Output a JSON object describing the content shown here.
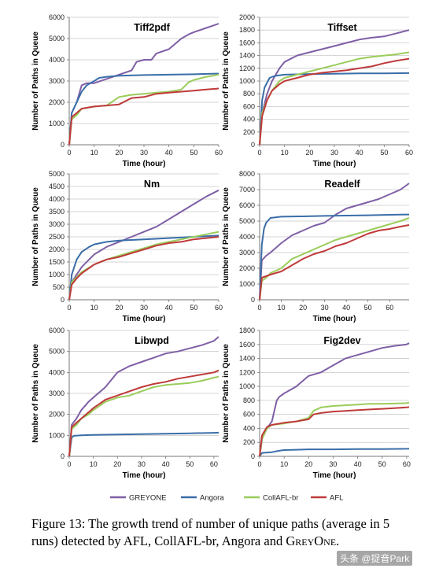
{
  "legend": [
    {
      "name": "GREYONE",
      "color": "#7f5fa6"
    },
    {
      "name": "Angora",
      "color": "#3a6ea8"
    },
    {
      "name": "CollAFL-br",
      "color": "#9acc5a"
    },
    {
      "name": "AFL",
      "color": "#bf3a3a"
    }
  ],
  "caption": {
    "label": "Figure 13:",
    "text": "The growth trend of number of unique paths (average in 5 runs) detected by AFL, CollAFL-br, Angora and",
    "tail": "GreyOne."
  },
  "watermark": "头条 @捉音Park",
  "chart_data": [
    {
      "type": "line",
      "title": "Tiff2pdf",
      "xlabel": "Time (hour)",
      "ylabel": "Number of Paths in Queue",
      "xlim": [
        0,
        60
      ],
      "xticks": [
        0,
        10,
        20,
        30,
        40,
        50,
        60
      ],
      "ylim": [
        0,
        6000
      ],
      "yticks": [
        0,
        1000,
        2000,
        3000,
        4000,
        5000,
        6000
      ],
      "series": [
        {
          "name": "GREYONE",
          "x": [
            0,
            1,
            3,
            5,
            7,
            10,
            15,
            20,
            25,
            27,
            30,
            33,
            35,
            40,
            45,
            48,
            50,
            55,
            60
          ],
          "y": [
            0,
            1500,
            2000,
            2800,
            2900,
            2900,
            3100,
            3300,
            3500,
            3900,
            4000,
            4000,
            4300,
            4500,
            5000,
            5200,
            5300,
            5500,
            5700
          ]
        },
        {
          "name": "Angora",
          "x": [
            0,
            1,
            3,
            5,
            7,
            10,
            12,
            15,
            20,
            30,
            40,
            50,
            60
          ],
          "y": [
            0,
            1500,
            2000,
            2500,
            2800,
            3000,
            3150,
            3200,
            3250,
            3280,
            3300,
            3320,
            3350
          ]
        },
        {
          "name": "CollAFL-br",
          "x": [
            0,
            1,
            3,
            5,
            10,
            15,
            20,
            25,
            30,
            35,
            40,
            45,
            48,
            50,
            55,
            60
          ],
          "y": [
            0,
            1200,
            1400,
            1700,
            1800,
            1850,
            2250,
            2350,
            2400,
            2450,
            2500,
            2600,
            2950,
            3050,
            3200,
            3300
          ]
        },
        {
          "name": "AFL",
          "x": [
            0,
            1,
            3,
            5,
            10,
            15,
            20,
            25,
            30,
            35,
            40,
            45,
            50,
            55,
            60
          ],
          "y": [
            0,
            1300,
            1500,
            1700,
            1800,
            1850,
            1900,
            2200,
            2250,
            2400,
            2450,
            2500,
            2550,
            2600,
            2650
          ]
        }
      ]
    },
    {
      "type": "line",
      "title": "Tiffset",
      "xlabel": "Time (hour)",
      "ylabel": "Number of Paths in Queue",
      "xlim": [
        0,
        60
      ],
      "xticks": [
        0,
        10,
        20,
        30,
        40,
        50,
        60
      ],
      "ylim": [
        0,
        2000
      ],
      "yticks": [
        0,
        200,
        400,
        600,
        800,
        1000,
        1200,
        1400,
        1600,
        1800,
        2000
      ],
      "series": [
        {
          "name": "GREYONE",
          "x": [
            0,
            1,
            3,
            5,
            8,
            10,
            15,
            20,
            25,
            30,
            35,
            40,
            45,
            50,
            55,
            60
          ],
          "y": [
            0,
            500,
            800,
            1000,
            1200,
            1300,
            1400,
            1450,
            1500,
            1550,
            1600,
            1650,
            1680,
            1700,
            1750,
            1800
          ]
        },
        {
          "name": "Angora",
          "x": [
            0,
            1,
            2,
            4,
            6,
            10,
            20,
            30,
            40,
            50,
            60
          ],
          "y": [
            0,
            700,
            900,
            1050,
            1080,
            1100,
            1110,
            1115,
            1120,
            1120,
            1125
          ]
        },
        {
          "name": "CollAFL-br",
          "x": [
            0,
            1,
            3,
            5,
            8,
            10,
            15,
            20,
            25,
            30,
            35,
            40,
            45,
            50,
            55,
            60
          ],
          "y": [
            0,
            500,
            700,
            850,
            1000,
            1050,
            1100,
            1150,
            1200,
            1250,
            1300,
            1350,
            1380,
            1400,
            1420,
            1450
          ]
        },
        {
          "name": "AFL",
          "x": [
            0,
            1,
            3,
            5,
            8,
            10,
            15,
            20,
            25,
            30,
            35,
            40,
            45,
            50,
            55,
            60
          ],
          "y": [
            0,
            450,
            700,
            850,
            950,
            1000,
            1050,
            1100,
            1130,
            1150,
            1170,
            1200,
            1230,
            1280,
            1320,
            1350
          ]
        }
      ]
    },
    {
      "type": "line",
      "title": "Nm",
      "xlabel": "Time (hour)",
      "ylabel": "Number of Paths in Queue",
      "xlim": [
        0,
        60
      ],
      "xticks": [
        0,
        10,
        20,
        30,
        40,
        50,
        60
      ],
      "ylim": [
        0,
        5000
      ],
      "yticks": [
        0,
        500,
        1000,
        1500,
        2000,
        2500,
        3000,
        3500,
        4000,
        4500,
        5000
      ],
      "series": [
        {
          "name": "GREYONE",
          "x": [
            0,
            1,
            3,
            5,
            8,
            10,
            15,
            20,
            25,
            30,
            35,
            40,
            45,
            50,
            55,
            60
          ],
          "y": [
            0,
            700,
            1000,
            1300,
            1600,
            1800,
            2100,
            2300,
            2500,
            2700,
            2900,
            3200,
            3500,
            3800,
            4100,
            4350
          ]
        },
        {
          "name": "Angora",
          "x": [
            0,
            1,
            3,
            5,
            8,
            10,
            15,
            20,
            30,
            40,
            50,
            60
          ],
          "y": [
            0,
            1000,
            1600,
            1900,
            2100,
            2200,
            2300,
            2350,
            2400,
            2450,
            2500,
            2550
          ]
        },
        {
          "name": "CollAFL-br",
          "x": [
            0,
            1,
            3,
            5,
            10,
            15,
            20,
            25,
            30,
            35,
            40,
            45,
            50,
            55,
            60
          ],
          "y": [
            0,
            700,
            900,
            1100,
            1400,
            1600,
            1750,
            1900,
            2050,
            2200,
            2300,
            2400,
            2500,
            2600,
            2700
          ]
        },
        {
          "name": "AFL",
          "x": [
            0,
            1,
            3,
            5,
            10,
            15,
            20,
            25,
            30,
            35,
            40,
            45,
            50,
            55,
            60
          ],
          "y": [
            0,
            600,
            850,
            1050,
            1400,
            1600,
            1700,
            1850,
            2000,
            2150,
            2250,
            2300,
            2400,
            2450,
            2500
          ]
        }
      ]
    },
    {
      "type": "line",
      "title": "Readelf",
      "xlabel": "Time (hour)",
      "ylabel": "Number of Paths in Queue",
      "xlim": [
        0,
        69
      ],
      "xticks": [
        0,
        10,
        20,
        30,
        40,
        50,
        60
      ],
      "ylim": [
        0,
        8000
      ],
      "yticks": [
        0,
        1000,
        2000,
        3000,
        4000,
        5000,
        6000,
        7000,
        8000
      ],
      "series": [
        {
          "name": "GREYONE",
          "x": [
            0,
            1,
            3,
            5,
            10,
            15,
            20,
            25,
            30,
            35,
            40,
            45,
            50,
            55,
            60,
            65,
            69
          ],
          "y": [
            0,
            2500,
            2800,
            3000,
            3600,
            4100,
            4400,
            4700,
            4900,
            5400,
            5800,
            6000,
            6200,
            6400,
            6700,
            7000,
            7400
          ]
        },
        {
          "name": "Angora",
          "x": [
            0,
            1,
            2,
            3,
            5,
            10,
            20,
            30,
            40,
            50,
            60,
            69
          ],
          "y": [
            0,
            3500,
            4500,
            4900,
            5200,
            5280,
            5300,
            5330,
            5350,
            5370,
            5400,
            5420
          ]
        },
        {
          "name": "CollAFL-br",
          "x": [
            0,
            1,
            3,
            5,
            10,
            15,
            20,
            25,
            30,
            35,
            40,
            45,
            50,
            55,
            60,
            65,
            69
          ],
          "y": [
            0,
            1200,
            1400,
            1700,
            2000,
            2600,
            2900,
            3200,
            3500,
            3800,
            4000,
            4200,
            4400,
            4600,
            4800,
            5000,
            5200
          ]
        },
        {
          "name": "AFL",
          "x": [
            0,
            1,
            3,
            5,
            10,
            15,
            20,
            25,
            30,
            35,
            40,
            45,
            50,
            55,
            60,
            65,
            69
          ],
          "y": [
            0,
            1400,
            1500,
            1600,
            1800,
            2200,
            2600,
            2900,
            3100,
            3400,
            3600,
            3900,
            4200,
            4400,
            4500,
            4650,
            4750
          ]
        }
      ]
    },
    {
      "type": "line",
      "title": "Libwpd",
      "xlabel": "Time (hour)",
      "ylabel": "Number of Paths in Queue",
      "xlim": [
        0,
        62
      ],
      "xticks": [
        0,
        10,
        20,
        30,
        40,
        50,
        60
      ],
      "ylim": [
        0,
        6000
      ],
      "yticks": [
        0,
        1000,
        2000,
        3000,
        4000,
        5000,
        6000
      ],
      "series": [
        {
          "name": "GREYONE",
          "x": [
            0,
            1,
            3,
            5,
            8,
            10,
            15,
            20,
            25,
            30,
            35,
            40,
            45,
            50,
            55,
            60,
            62
          ],
          "y": [
            0,
            1500,
            1800,
            2200,
            2600,
            2800,
            3300,
            4000,
            4300,
            4500,
            4700,
            4900,
            5000,
            5150,
            5300,
            5500,
            5700
          ]
        },
        {
          "name": "Angora",
          "x": [
            0,
            1,
            2,
            5,
            10,
            20,
            30,
            40,
            50,
            60,
            62
          ],
          "y": [
            0,
            900,
            980,
            1000,
            1020,
            1040,
            1060,
            1080,
            1100,
            1120,
            1130
          ]
        },
        {
          "name": "CollAFL-br",
          "x": [
            0,
            1,
            3,
            5,
            8,
            10,
            15,
            20,
            25,
            30,
            35,
            40,
            45,
            50,
            55,
            60,
            62
          ],
          "y": [
            0,
            1300,
            1500,
            1800,
            2000,
            2200,
            2600,
            2800,
            2900,
            3100,
            3300,
            3400,
            3450,
            3500,
            3600,
            3750,
            3800
          ]
        },
        {
          "name": "AFL",
          "x": [
            0,
            1,
            3,
            5,
            8,
            10,
            15,
            20,
            25,
            30,
            35,
            40,
            45,
            50,
            55,
            60,
            62
          ],
          "y": [
            0,
            1400,
            1600,
            1800,
            2100,
            2300,
            2700,
            2900,
            3100,
            3300,
            3450,
            3550,
            3700,
            3800,
            3900,
            4000,
            4100
          ]
        }
      ]
    },
    {
      "type": "line",
      "title": "Fig2dev",
      "xlabel": "Time (hour)",
      "ylabel": "Number of Paths in Queue",
      "xlim": [
        0,
        61
      ],
      "xticks": [
        0,
        10,
        20,
        30,
        40,
        50,
        60
      ],
      "ylim": [
        0,
        1800
      ],
      "yticks": [
        0,
        200,
        400,
        600,
        800,
        1000,
        1200,
        1400,
        1600,
        1800
      ],
      "series": [
        {
          "name": "GREYONE",
          "x": [
            0,
            1,
            3,
            5,
            7,
            8,
            10,
            15,
            20,
            25,
            30,
            35,
            40,
            45,
            50,
            55,
            60,
            61
          ],
          "y": [
            0,
            250,
            400,
            500,
            800,
            850,
            900,
            1000,
            1150,
            1200,
            1300,
            1400,
            1450,
            1500,
            1550,
            1580,
            1600,
            1620
          ]
        },
        {
          "name": "Angora",
          "x": [
            0,
            1,
            5,
            8,
            10,
            15,
            20,
            30,
            40,
            50,
            60,
            61
          ],
          "y": [
            0,
            50,
            60,
            80,
            90,
            95,
            100,
            100,
            105,
            105,
            108,
            110
          ]
        },
        {
          "name": "CollAFL-br",
          "x": [
            0,
            1,
            3,
            5,
            10,
            15,
            20,
            22,
            25,
            30,
            35,
            40,
            45,
            50,
            55,
            60,
            61
          ],
          "y": [
            0,
            250,
            400,
            450,
            470,
            500,
            550,
            650,
            700,
            720,
            730,
            740,
            750,
            750,
            755,
            760,
            770
          ]
        },
        {
          "name": "AFL",
          "x": [
            0,
            1,
            3,
            5,
            10,
            15,
            20,
            22,
            25,
            30,
            35,
            40,
            45,
            50,
            55,
            60,
            61
          ],
          "y": [
            0,
            300,
            420,
            450,
            480,
            500,
            530,
            600,
            620,
            640,
            650,
            660,
            670,
            680,
            690,
            700,
            705
          ]
        }
      ]
    }
  ]
}
